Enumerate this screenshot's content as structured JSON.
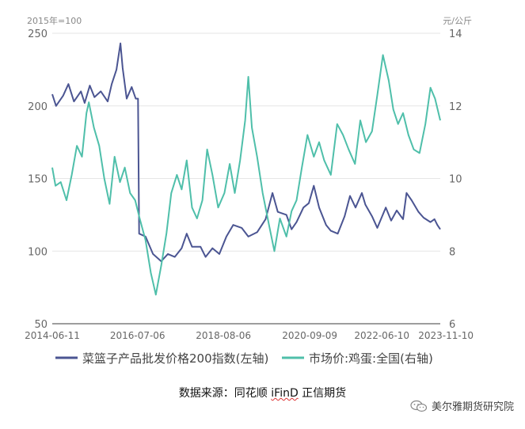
{
  "chart_data": {
    "type": "line",
    "left_unit": "2015年=100",
    "right_unit": "元/公斤",
    "y_left": {
      "min": 50,
      "max": 250,
      "ticks": [
        "50",
        "100",
        "150",
        "200",
        "250"
      ]
    },
    "y_right": {
      "min": 6,
      "max": 14,
      "ticks": [
        "6",
        "8",
        "10",
        "12",
        "14"
      ]
    },
    "x_range": [
      "2014-06-11",
      "2023-11-10"
    ],
    "x_ticks": [
      "2014-06-11",
      "2016-07-06",
      "2018-08-06",
      "2020-09-09",
      "2022-06-10",
      "2023-11-10"
    ],
    "legend_position": "bottom",
    "grid": true,
    "series": [
      {
        "name": "菜篮子产品批发价格200指数(左轴)",
        "axis": "left",
        "color": "#4b5592",
        "points": [
          [
            "2014-06-11",
            208
          ],
          [
            "2014-07-15",
            200
          ],
          [
            "2014-09-15",
            207
          ],
          [
            "2014-11-01",
            215
          ],
          [
            "2014-12-20",
            203
          ],
          [
            "2015-02-20",
            210
          ],
          [
            "2015-03-25",
            202
          ],
          [
            "2015-05-10",
            214
          ],
          [
            "2015-06-20",
            206
          ],
          [
            "2015-08-15",
            210
          ],
          [
            "2015-10-15",
            203
          ],
          [
            "2015-11-20",
            215
          ],
          [
            "2016-01-01",
            225
          ],
          [
            "2016-02-05",
            243
          ],
          [
            "2016-02-25",
            226
          ],
          [
            "2016-04-01",
            205
          ],
          [
            "2016-05-15",
            213
          ],
          [
            "2016-06-20",
            205
          ],
          [
            "2016-07-10",
            205
          ],
          [
            "2016-07-20",
            112
          ],
          [
            "2016-09-15",
            110
          ],
          [
            "2016-11-20",
            98
          ],
          [
            "2017-02-01",
            93
          ],
          [
            "2017-04-01",
            98
          ],
          [
            "2017-06-01",
            96
          ],
          [
            "2017-08-01",
            102
          ],
          [
            "2017-09-15",
            112
          ],
          [
            "2017-11-01",
            103
          ],
          [
            "2018-01-15",
            103
          ],
          [
            "2018-03-01",
            96
          ],
          [
            "2018-05-01",
            102
          ],
          [
            "2018-07-01",
            98
          ],
          [
            "2018-09-01",
            110
          ],
          [
            "2018-11-01",
            118
          ],
          [
            "2019-01-15",
            116
          ],
          [
            "2019-03-15",
            110
          ],
          [
            "2019-06-01",
            113
          ],
          [
            "2019-08-15",
            122
          ],
          [
            "2019-10-15",
            140
          ],
          [
            "2019-12-01",
            127
          ],
          [
            "2020-02-15",
            125
          ],
          [
            "2020-04-01",
            115
          ],
          [
            "2020-05-15",
            120
          ],
          [
            "2020-07-15",
            130
          ],
          [
            "2020-09-01",
            133
          ],
          [
            "2020-10-15",
            145
          ],
          [
            "2020-12-01",
            130
          ],
          [
            "2021-02-01",
            118
          ],
          [
            "2021-03-15",
            114
          ],
          [
            "2021-05-15",
            112
          ],
          [
            "2021-07-15",
            124
          ],
          [
            "2021-09-01",
            138
          ],
          [
            "2021-10-20",
            130
          ],
          [
            "2021-12-15",
            140
          ],
          [
            "2022-01-15",
            132
          ],
          [
            "2022-03-15",
            124
          ],
          [
            "2022-05-01",
            116
          ],
          [
            "2022-07-15",
            130
          ],
          [
            "2022-09-01",
            121
          ],
          [
            "2022-10-20",
            128
          ],
          [
            "2022-12-15",
            122
          ],
          [
            "2023-01-15",
            140
          ],
          [
            "2023-03-01",
            135
          ],
          [
            "2023-05-01",
            127
          ],
          [
            "2023-06-15",
            123
          ],
          [
            "2023-08-15",
            120
          ],
          [
            "2023-09-20",
            122
          ],
          [
            "2023-10-15",
            118
          ],
          [
            "2023-11-10",
            115
          ]
        ]
      },
      {
        "name": "市场价:鸡蛋:全国(右轴)",
        "axis": "right",
        "color": "#4fbfaa",
        "points": [
          [
            "2014-06-11",
            10.3
          ],
          [
            "2014-07-10",
            9.8
          ],
          [
            "2014-08-25",
            9.9
          ],
          [
            "2014-10-15",
            9.4
          ],
          [
            "2014-12-01",
            10.1
          ],
          [
            "2015-01-15",
            10.9
          ],
          [
            "2015-03-01",
            10.6
          ],
          [
            "2015-04-10",
            11.8
          ],
          [
            "2015-05-01",
            12.1
          ],
          [
            "2015-06-15",
            11.4
          ],
          [
            "2015-08-01",
            10.9
          ],
          [
            "2015-09-15",
            10.0
          ],
          [
            "2015-11-01",
            9.3
          ],
          [
            "2015-12-15",
            10.6
          ],
          [
            "2016-02-01",
            9.9
          ],
          [
            "2016-03-15",
            10.3
          ],
          [
            "2016-05-01",
            9.6
          ],
          [
            "2016-06-15",
            9.4
          ],
          [
            "2016-07-25",
            8.9
          ],
          [
            "2016-09-15",
            8.3
          ],
          [
            "2016-11-01",
            7.4
          ],
          [
            "2016-12-15",
            6.8
          ],
          [
            "2017-02-01",
            7.6
          ],
          [
            "2017-03-20",
            8.5
          ],
          [
            "2017-05-01",
            9.6
          ],
          [
            "2017-06-20",
            10.1
          ],
          [
            "2017-08-01",
            9.7
          ],
          [
            "2017-09-15",
            10.5
          ],
          [
            "2017-11-01",
            9.2
          ],
          [
            "2017-12-15",
            8.9
          ],
          [
            "2018-02-01",
            9.4
          ],
          [
            "2018-03-15",
            10.8
          ],
          [
            "2018-05-01",
            10.1
          ],
          [
            "2018-06-20",
            9.2
          ],
          [
            "2018-08-15",
            9.6
          ],
          [
            "2018-10-01",
            10.4
          ],
          [
            "2018-11-15",
            9.6
          ],
          [
            "2019-01-01",
            10.5
          ],
          [
            "2019-02-15",
            11.6
          ],
          [
            "2019-03-15",
            12.8
          ],
          [
            "2019-04-15",
            11.4
          ],
          [
            "2019-06-01",
            10.6
          ],
          [
            "2019-07-20",
            9.6
          ],
          [
            "2019-09-15",
            8.7
          ],
          [
            "2019-11-01",
            8.0
          ],
          [
            "2019-12-20",
            8.9
          ],
          [
            "2020-02-15",
            8.4
          ],
          [
            "2020-04-01",
            9.1
          ],
          [
            "2020-05-15",
            9.4
          ],
          [
            "2020-07-01",
            10.3
          ],
          [
            "2020-08-20",
            11.2
          ],
          [
            "2020-10-15",
            10.6
          ],
          [
            "2020-12-01",
            11.0
          ],
          [
            "2021-01-15",
            10.5
          ],
          [
            "2021-03-15",
            10.1
          ],
          [
            "2021-05-10",
            11.5
          ],
          [
            "2021-07-01",
            11.2
          ],
          [
            "2021-08-20",
            10.8
          ],
          [
            "2021-10-15",
            10.4
          ],
          [
            "2021-12-01",
            11.6
          ],
          [
            "2022-01-20",
            11.0
          ],
          [
            "2022-03-15",
            11.3
          ],
          [
            "2022-05-01",
            12.3
          ],
          [
            "2022-06-20",
            13.4
          ],
          [
            "2022-08-10",
            12.7
          ],
          [
            "2022-09-20",
            11.9
          ],
          [
            "2022-11-01",
            11.5
          ],
          [
            "2022-12-15",
            11.8
          ],
          [
            "2023-02-01",
            11.2
          ],
          [
            "2023-03-20",
            10.8
          ],
          [
            "2023-05-10",
            10.7
          ],
          [
            "2023-07-01",
            11.5
          ],
          [
            "2023-08-15",
            12.5
          ],
          [
            "2023-09-25",
            12.2
          ],
          [
            "2023-11-10",
            11.6
          ]
        ]
      }
    ]
  },
  "source_text": "数据来源：同花顺 ",
  "source_ifind": "iFinD",
  "source_suffix": " 正信期货",
  "watermark": "美尔雅期货研究院"
}
